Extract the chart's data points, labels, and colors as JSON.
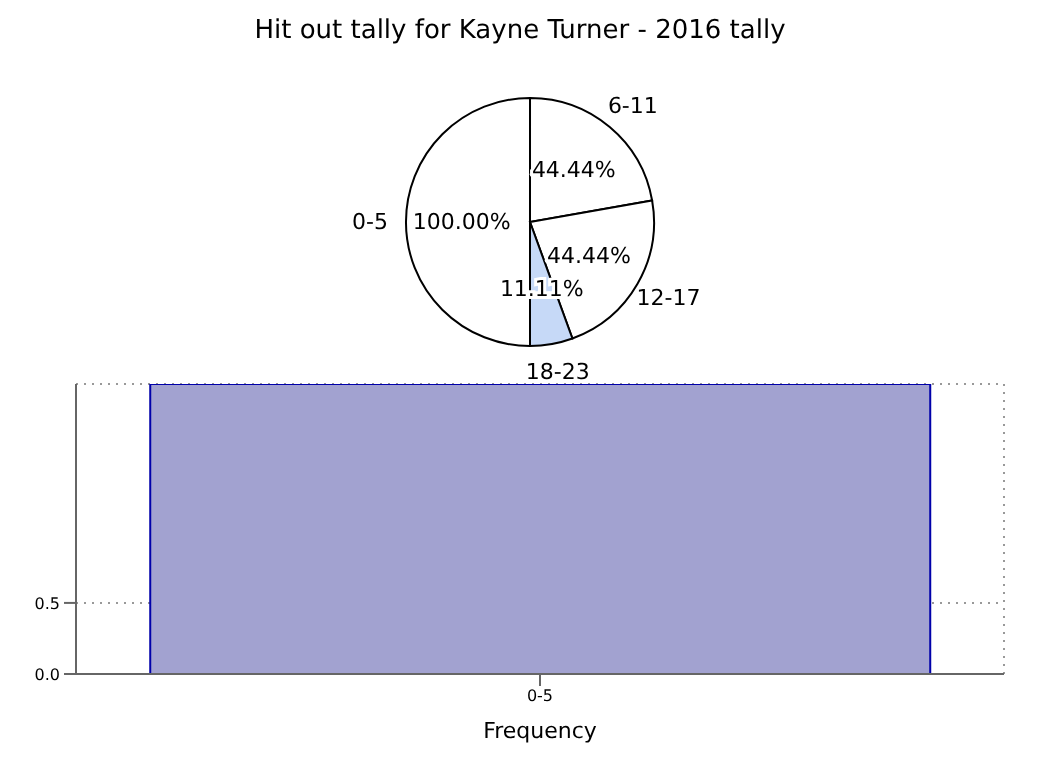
{
  "chart_data": [
    {
      "type": "pie",
      "title": "Hit out tally for Kayne Turner - 2016 tally",
      "categories": [
        "0-5",
        "6-11",
        "12-17",
        "18-23"
      ],
      "values": [
        100.0,
        44.44,
        44.44,
        11.11
      ],
      "value_labels": [
        "100.00%",
        "44.44%",
        "44.44%",
        "11.11%"
      ],
      "colors": [
        "#ffffff",
        "#ffffff",
        "#ffffff",
        "#c6d9f7"
      ]
    },
    {
      "type": "bar",
      "categories": [
        "0-5"
      ],
      "values": [
        2.04
      ],
      "color": "#a2a2d0",
      "xlabel": "Frequency",
      "ylim": [
        0,
        2.04
      ],
      "yticks": [
        {
          "value": 0,
          "label": "0.0"
        },
        {
          "value": 0.5,
          "label": "0.5"
        }
      ],
      "grid": true
    }
  ]
}
